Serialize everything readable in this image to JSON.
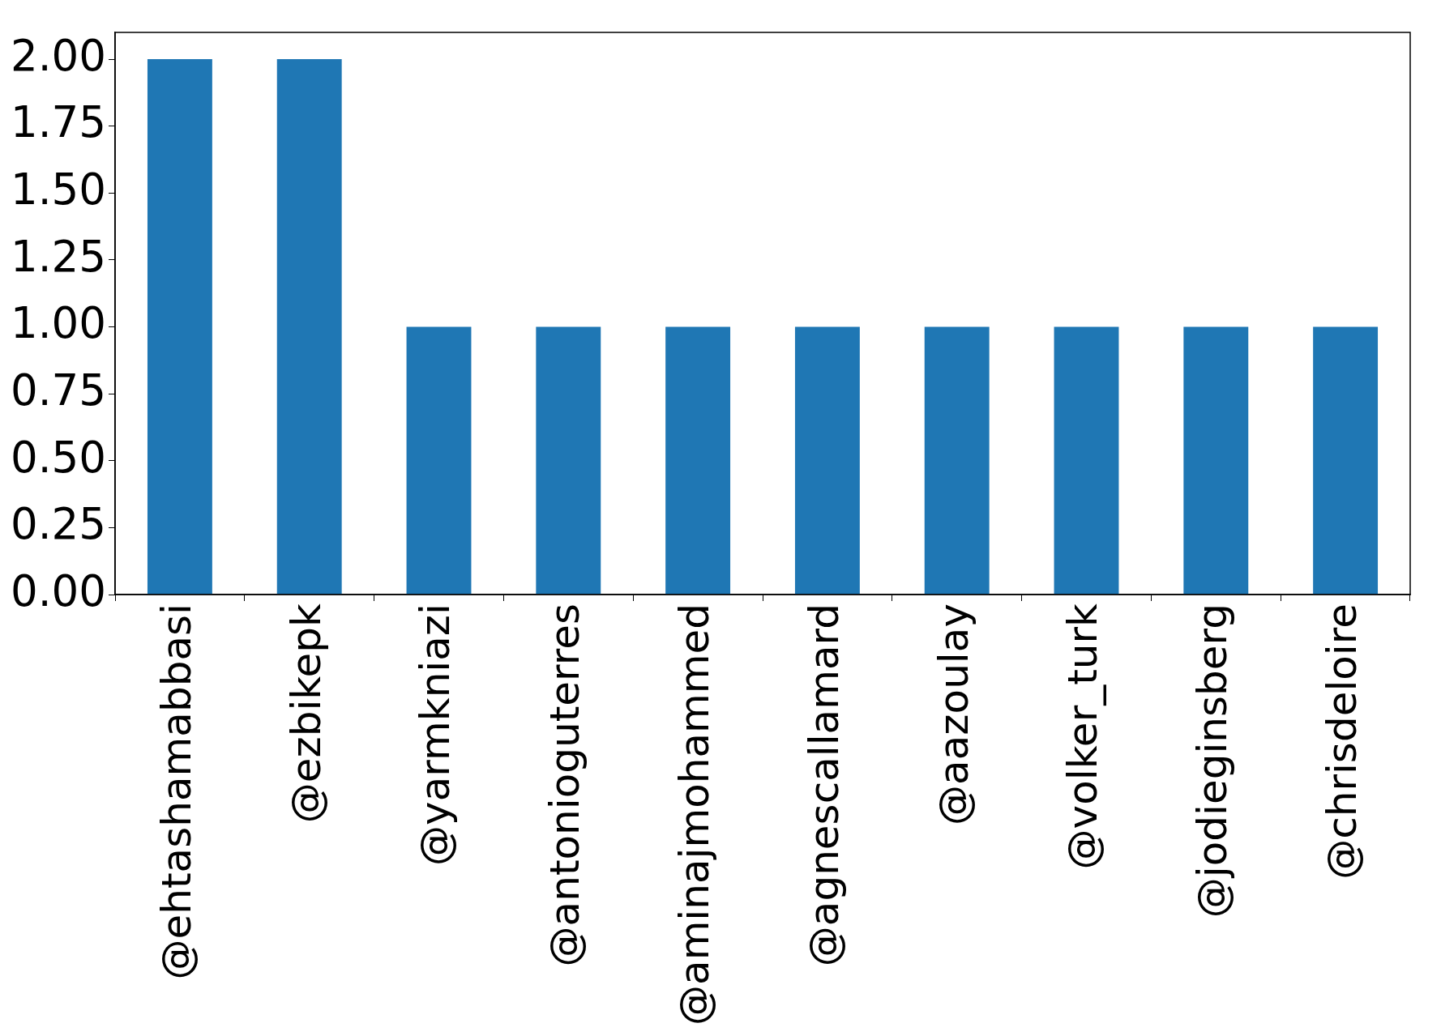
{
  "chart_data": {
    "type": "bar",
    "categories": [
      "@ehtashamabbasi",
      "@ezbikepk",
      "@yarmkniazi",
      "@antonioguterres",
      "@aminajmohammed",
      "@agnescallamard",
      "@aazoulay",
      "@volker_turk",
      "@jodieginsberg",
      "@chrisdeloire"
    ],
    "values": [
      2,
      2,
      1,
      1,
      1,
      1,
      1,
      1,
      1,
      1
    ],
    "color": "#1f77b4",
    "ylim": [
      0,
      2.1
    ],
    "yticks": [
      {
        "value": 0,
        "label": "0.00"
      },
      {
        "value": 0.25,
        "label": "0.25"
      },
      {
        "value": 0.5,
        "label": "0.50"
      },
      {
        "value": 0.75,
        "label": "0.75"
      },
      {
        "value": 1,
        "label": "1.00"
      },
      {
        "value": 1.25,
        "label": "1.25"
      },
      {
        "value": 1.5,
        "label": "1.50"
      },
      {
        "value": 1.75,
        "label": "1.75"
      },
      {
        "value": 2,
        "label": "2.00"
      }
    ],
    "grid": false,
    "legend": false
  }
}
